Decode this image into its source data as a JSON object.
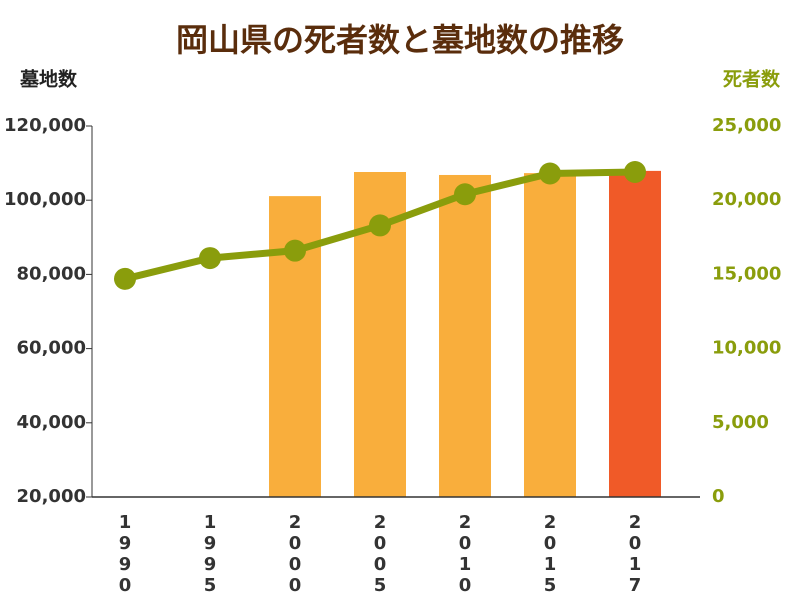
{
  "chart_data": {
    "type": "bar-line",
    "title": "岡山県の死者数と墓地数の推移",
    "categories": [
      "1990",
      "1995",
      "2000",
      "2005",
      "2010",
      "2015",
      "2017"
    ],
    "series": [
      {
        "name": "墓地数",
        "type": "bar",
        "axis": "y",
        "color": "#f9ae3c",
        "colors": [
          "#f9ae3c",
          "#f9ae3c",
          "#f9ae3c",
          "#f9ae3c",
          "#f9ae3c",
          "#f9ae3c",
          "#f05a28"
        ],
        "values": [
          null,
          null,
          101100,
          107600,
          106800,
          107300,
          107900
        ]
      },
      {
        "name": "死者数",
        "type": "line",
        "axis": "y2",
        "color": "#8a9d0c",
        "values": [
          14700,
          16100,
          16600,
          18300,
          20400,
          21800,
          21900
        ]
      }
    ],
    "ylim": [
      20000,
      120000
    ],
    "yticks": [
      {
        "value": 20000,
        "label": "20,000"
      },
      {
        "value": 40000,
        "label": "40,000"
      },
      {
        "value": 60000,
        "label": "60,000"
      },
      {
        "value": 80000,
        "label": "80,000"
      },
      {
        "value": 100000,
        "label": "100,000"
      },
      {
        "value": 120000,
        "label": "120,000"
      }
    ],
    "y2lim": [
      0,
      25000
    ],
    "y2ticks": [
      0,
      {
        "value": 5000,
        "label": "5,000"
      },
      {
        "value": 10000,
        "label": "10,000"
      },
      {
        "value": 15000,
        "label": "15,000"
      },
      {
        "value": 20000,
        "label": "20,000"
      },
      {
        "value": 25000,
        "label": "25,000"
      }
    ]
  }
}
